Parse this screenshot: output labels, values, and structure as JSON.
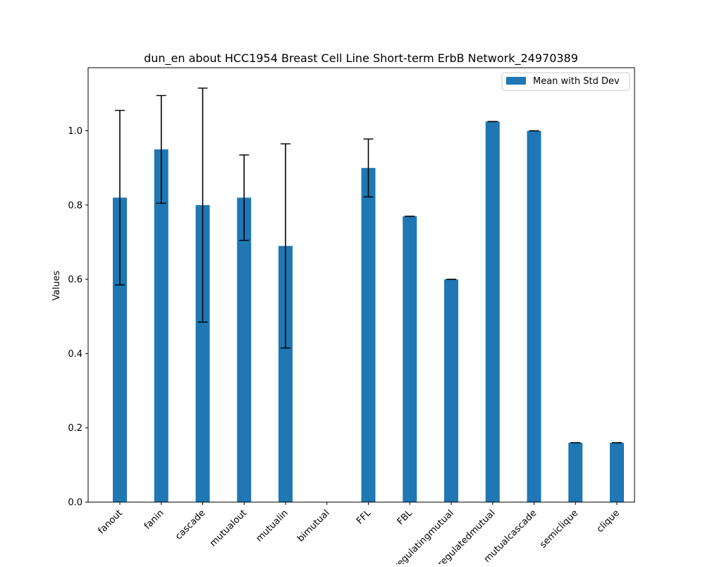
{
  "chart_data": {
    "type": "bar",
    "title": "dun_en about HCC1954 Breast Cell Line Short-term ErbB Network_24970389",
    "xlabel": "",
    "ylabel": "Values",
    "ylim": [
      0,
      1.17
    ],
    "yticks": [
      0.0,
      0.2,
      0.4,
      0.6,
      0.8,
      1.0
    ],
    "ytick_labels": [
      "0.0",
      "0.2",
      "0.4",
      "0.6",
      "0.8",
      "1.0"
    ],
    "categories": [
      "fanout",
      "fanin",
      "cascade",
      "mutualout",
      "mutualin",
      "bimutual",
      "FFL",
      "FBL",
      "regulatingmutual",
      "regulatedmutual",
      "mutualcascade",
      "semiclique",
      "clique"
    ],
    "series": [
      {
        "name": "Mean with Std Dev",
        "color": "#1f77b4",
        "values": [
          0.82,
          0.95,
          0.8,
          0.82,
          0.69,
          0.0,
          0.9,
          0.77,
          0.6,
          1.025,
          1.0,
          0.16,
          0.16
        ],
        "errors": [
          0.235,
          0.145,
          0.315,
          0.115,
          0.275,
          0.0,
          0.078,
          0.0,
          0.0,
          0.0,
          0.0,
          0.0,
          0.0
        ]
      }
    ],
    "legend": {
      "position": "top-right"
    },
    "grid": false
  }
}
